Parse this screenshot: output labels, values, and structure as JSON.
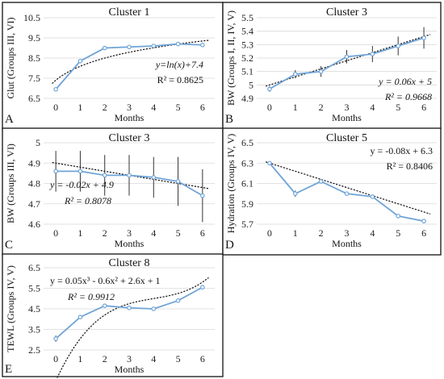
{
  "chart_data": [
    {
      "panel_letter": "A",
      "type": "line",
      "title": "Cluster 1",
      "xlabel": "Months",
      "ylabel": "Glut (Groups III, VI)",
      "x": [
        0,
        1,
        2,
        3,
        4,
        5,
        6
      ],
      "ylim": [
        6.5,
        10.5
      ],
      "yticks": [
        6.5,
        7.5,
        8.5,
        9.5,
        10.5
      ],
      "ytick_labels": [
        "6.5",
        "7.5",
        "8.5",
        "9.5",
        "10.5"
      ],
      "series": [
        {
          "values": [
            6.95,
            8.35,
            9.0,
            9.05,
            9.1,
            9.2,
            9.15
          ],
          "color": "#6fa4d7"
        }
      ],
      "error_bars": false,
      "trendline": {
        "type": "log",
        "a": 1.0,
        "b": 7.4,
        "x_offset": 1
      },
      "equation": "y=ln(x)+7.4",
      "r2": "R² = 0.8625"
    },
    {
      "panel_letter": "B",
      "type": "line",
      "title": "Cluster 3",
      "xlabel": "Months",
      "ylabel": "BW (Groups I, II, IV, V)",
      "x": [
        0,
        1,
        2,
        3,
        4,
        5,
        6
      ],
      "ylim": [
        4.9,
        5.5
      ],
      "yticks": [
        4.9,
        5.0,
        5.1,
        5.2,
        5.3,
        5.4,
        5.5
      ],
      "ytick_labels": [
        "4.9",
        "5",
        "5.1",
        "5.2",
        "5.3",
        "5.4",
        "5.5"
      ],
      "series": [
        {
          "values": [
            4.97,
            5.08,
            5.1,
            5.21,
            5.23,
            5.29,
            5.35
          ],
          "color": "#6fa4d7"
        }
      ],
      "error_bars": true,
      "errors": [
        0.02,
        0.03,
        0.04,
        0.05,
        0.06,
        0.07,
        0.08
      ],
      "trendline": {
        "type": "linear",
        "m": 0.06,
        "c": 5.0
      },
      "equation": "y = 0.06x + 5",
      "r2": "R² = 0.9668"
    },
    {
      "panel_letter": "C",
      "type": "line",
      "title": "Cluster 3",
      "xlabel": "Months",
      "ylabel": "BW (Groups III, VI)",
      "x": [
        0,
        1,
        2,
        3,
        4,
        5,
        6
      ],
      "ylim": [
        4.6,
        5.0
      ],
      "yticks": [
        4.6,
        4.7,
        4.8,
        4.9,
        5.0
      ],
      "ytick_labels": [
        "4.6",
        "4.7",
        "4.8",
        "4.9",
        "5"
      ],
      "series": [
        {
          "values": [
            4.86,
            4.86,
            4.84,
            4.84,
            4.83,
            4.81,
            4.74
          ],
          "color": "#6fa4d7"
        }
      ],
      "error_bars": true,
      "errors": [
        0.1,
        0.1,
        0.1,
        0.1,
        0.1,
        0.12,
        0.13
      ],
      "trendline": {
        "type": "linear",
        "m": -0.02,
        "c": 4.9
      },
      "equation": "y = -0.02x + 4.9",
      "r2": "R² = 0.8078"
    },
    {
      "panel_letter": "D",
      "type": "line",
      "title": "Cluster 5",
      "xlabel": "Months",
      "ylabel": "Hydration (Groups IV, V)",
      "x": [
        0,
        1,
        2,
        3,
        4,
        5,
        6
      ],
      "ylim": [
        5.7,
        6.5
      ],
      "yticks": [
        5.7,
        5.9,
        6.1,
        6.3,
        6.5
      ],
      "ytick_labels": [
        "5.7",
        "5.9",
        "6.1",
        "6.3",
        "6.5"
      ],
      "series": [
        {
          "values": [
            6.3,
            6.0,
            6.12,
            6.0,
            5.97,
            5.78,
            5.73
          ],
          "color": "#6fa4d7"
        }
      ],
      "error_bars": true,
      "errors": [
        0.01,
        0.03,
        0.02,
        0.01,
        0.02,
        0.01,
        0.01
      ],
      "trendline": {
        "type": "linear",
        "m": -0.08,
        "c": 6.3
      },
      "equation": "y = -0.08x + 6.3",
      "r2": "R² = 0.8406"
    },
    {
      "panel_letter": "E",
      "type": "line",
      "title": "Cluster 8",
      "xlabel": "Months",
      "ylabel": "TEWL (Groups IV, V)",
      "x": [
        0,
        1,
        2,
        3,
        4,
        5,
        6
      ],
      "ylim": [
        2.5,
        6.5
      ],
      "yticks": [
        2.5,
        3.5,
        4.5,
        5.5,
        6.5
      ],
      "ytick_labels": [
        "2.5",
        "3.5",
        "4.5",
        "5.5",
        "6.5"
      ],
      "series": [
        {
          "values": [
            3.05,
            4.1,
            4.65,
            4.55,
            4.5,
            4.9,
            5.55
          ],
          "color": "#6fa4d7"
        }
      ],
      "error_bars": true,
      "errors": [
        0.15,
        0.08,
        0.08,
        0.06,
        0.06,
        0.08,
        0.1
      ],
      "trendline": {
        "type": "cubic",
        "a3": 0.05,
        "a2": -0.6,
        "a1": 2.6,
        "a0": 1.0
      },
      "equation": "y = 0.05x³ - 0.6x² + 2.6x + 1",
      "r2": "R² = 0.9912"
    }
  ]
}
